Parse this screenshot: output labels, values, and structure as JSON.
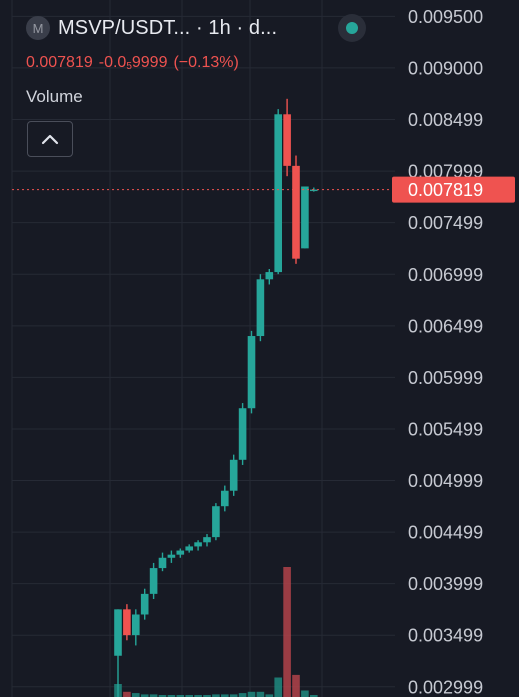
{
  "header": {
    "symbol_icon": "M",
    "title": "MSVP/USDT... · 1h · d...",
    "price": "0.007819",
    "change_abs_prefix": "-0.0",
    "change_abs_sub": "5",
    "change_abs_suffix": "9999",
    "change_pct": "(−0.13%)",
    "volume_label": "Volume",
    "live_icon": "live-status-dot-icon",
    "collapse_icon": "chevron-up-icon"
  },
  "colors": {
    "background": "#171a24",
    "up": "#26a69a",
    "down": "#ef5350",
    "volume_down": "#b2434a",
    "volume_up": "#1f8a7f",
    "grid": "#262a35"
  },
  "chart_data": {
    "type": "candlestick",
    "y_range": [
      0.0029,
      0.0096
    ],
    "y_ticks": [
      "0.009500",
      "0.009000",
      "0.008499",
      "0.007999",
      "0.007499",
      "0.006999",
      "0.006499",
      "0.005999",
      "0.005499",
      "0.004999",
      "0.004499",
      "0.003999",
      "0.003499",
      "0.002999"
    ],
    "last_price": 0.007819,
    "last_price_label": "0.007819",
    "candles": [
      {
        "o": 0.0033,
        "h": 0.00375,
        "l": 0.0029,
        "c": 0.00375
      },
      {
        "o": 0.00375,
        "h": 0.0038,
        "l": 0.00345,
        "c": 0.0035
      },
      {
        "o": 0.0035,
        "h": 0.00375,
        "l": 0.0034,
        "c": 0.0037
      },
      {
        "o": 0.0037,
        "h": 0.00395,
        "l": 0.00365,
        "c": 0.0039
      },
      {
        "o": 0.0039,
        "h": 0.0042,
        "l": 0.00385,
        "c": 0.00415
      },
      {
        "o": 0.00415,
        "h": 0.0043,
        "l": 0.00412,
        "c": 0.00425
      },
      {
        "o": 0.00425,
        "h": 0.00432,
        "l": 0.0042,
        "c": 0.00428
      },
      {
        "o": 0.00428,
        "h": 0.00434,
        "l": 0.00425,
        "c": 0.00432
      },
      {
        "o": 0.00432,
        "h": 0.00438,
        "l": 0.0043,
        "c": 0.00436
      },
      {
        "o": 0.00436,
        "h": 0.00442,
        "l": 0.00432,
        "c": 0.0044
      },
      {
        "o": 0.0044,
        "h": 0.00448,
        "l": 0.00436,
        "c": 0.00445
      },
      {
        "o": 0.00445,
        "h": 0.00478,
        "l": 0.00442,
        "c": 0.00475
      },
      {
        "o": 0.00475,
        "h": 0.00495,
        "l": 0.0047,
        "c": 0.0049
      },
      {
        "o": 0.0049,
        "h": 0.00525,
        "l": 0.00485,
        "c": 0.0052
      },
      {
        "o": 0.0052,
        "h": 0.00575,
        "l": 0.00515,
        "c": 0.0057
      },
      {
        "o": 0.0057,
        "h": 0.00645,
        "l": 0.00565,
        "c": 0.0064
      },
      {
        "o": 0.0064,
        "h": 0.007,
        "l": 0.00635,
        "c": 0.00695
      },
      {
        "o": 0.00695,
        "h": 0.00705,
        "l": 0.0069,
        "c": 0.00702
      },
      {
        "o": 0.00702,
        "h": 0.0086,
        "l": 0.007,
        "c": 0.00855
      },
      {
        "o": 0.00855,
        "h": 0.0087,
        "l": 0.00795,
        "c": 0.00805
      },
      {
        "o": 0.00805,
        "h": 0.00815,
        "l": 0.0071,
        "c": 0.00715
      },
      {
        "o": 0.00725,
        "h": 0.00785,
        "l": 0.00725,
        "c": 0.00785
      },
      {
        "o": 0.00782,
        "h": 0.00784,
        "l": 0.0078,
        "c": 0.00782
      }
    ],
    "volume": [
      {
        "v": 0.1,
        "dir": "up"
      },
      {
        "v": 0.04,
        "dir": "down"
      },
      {
        "v": 0.03,
        "dir": "up"
      },
      {
        "v": 0.02,
        "dir": "up"
      },
      {
        "v": 0.02,
        "dir": "up"
      },
      {
        "v": 0.01,
        "dir": "up"
      },
      {
        "v": 0.01,
        "dir": "up"
      },
      {
        "v": 0.01,
        "dir": "up"
      },
      {
        "v": 0.01,
        "dir": "up"
      },
      {
        "v": 0.01,
        "dir": "up"
      },
      {
        "v": 0.01,
        "dir": "up"
      },
      {
        "v": 0.02,
        "dir": "up"
      },
      {
        "v": 0.02,
        "dir": "up"
      },
      {
        "v": 0.02,
        "dir": "up"
      },
      {
        "v": 0.03,
        "dir": "up"
      },
      {
        "v": 0.04,
        "dir": "up"
      },
      {
        "v": 0.04,
        "dir": "up"
      },
      {
        "v": 0.02,
        "dir": "up"
      },
      {
        "v": 0.15,
        "dir": "up"
      },
      {
        "v": 1.0,
        "dir": "down"
      },
      {
        "v": 0.17,
        "dir": "down"
      },
      {
        "v": 0.05,
        "dir": "up"
      },
      {
        "v": 0.01,
        "dir": "up"
      }
    ]
  }
}
